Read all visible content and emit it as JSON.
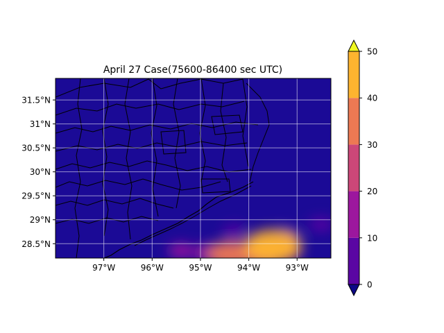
{
  "chart_data": {
    "type": "heatmap",
    "title": "April 27 Case(75600-86400 sec UTC)",
    "xlabel": "",
    "ylabel": "",
    "map_extent": {
      "lon": [
        -98.0,
        -92.3
      ],
      "lat": [
        28.2,
        31.95
      ]
    },
    "xticks": [
      {
        "value": -97,
        "label": "97°W"
      },
      {
        "value": -96,
        "label": "96°W"
      },
      {
        "value": -95,
        "label": "95°W"
      },
      {
        "value": -94,
        "label": "94°W"
      },
      {
        "value": -93,
        "label": "93°W"
      }
    ],
    "yticks": [
      {
        "value": 28.5,
        "label": "28.5°N"
      },
      {
        "value": 29.0,
        "label": "29°N"
      },
      {
        "value": 29.5,
        "label": "29.5°N"
      },
      {
        "value": 30.0,
        "label": "30°N"
      },
      {
        "value": 30.5,
        "label": "30.5°N"
      },
      {
        "value": 31.0,
        "label": "31°N"
      },
      {
        "value": 31.5,
        "label": "31.5°N"
      }
    ],
    "grid": true,
    "colorbar": {
      "levels": [
        0,
        10,
        20,
        30,
        40,
        50
      ],
      "tick_labels": [
        "0",
        "10",
        "20",
        "30",
        "40",
        "50"
      ],
      "colors": [
        "#5a06a3",
        "#9c179e",
        "#cc4778",
        "#ed7953",
        "#fdb42f"
      ],
      "under_color": "#0d0887",
      "over_color": "#f0f921",
      "extend": "both"
    },
    "background_value_color": "#1b0a96",
    "high_value_cells": [
      {
        "lon": -93.5,
        "lat": 28.45,
        "value": 48
      },
      {
        "lon": -93.7,
        "lat": 28.3,
        "value": 38
      },
      {
        "lon": -94.4,
        "lat": 28.28,
        "value": 32
      },
      {
        "lon": -94.0,
        "lat": 28.3,
        "value": 26
      },
      {
        "lon": -93.3,
        "lat": 28.35,
        "value": 24
      },
      {
        "lon": -94.8,
        "lat": 28.3,
        "value": 18
      },
      {
        "lon": -95.4,
        "lat": 28.35,
        "value": 10
      },
      {
        "lon": -92.5,
        "lat": 28.9,
        "value": 8
      },
      {
        "lon": -93.2,
        "lat": 28.7,
        "value": 9
      },
      {
        "lon": -94.3,
        "lat": 28.75,
        "value": 7
      }
    ]
  }
}
